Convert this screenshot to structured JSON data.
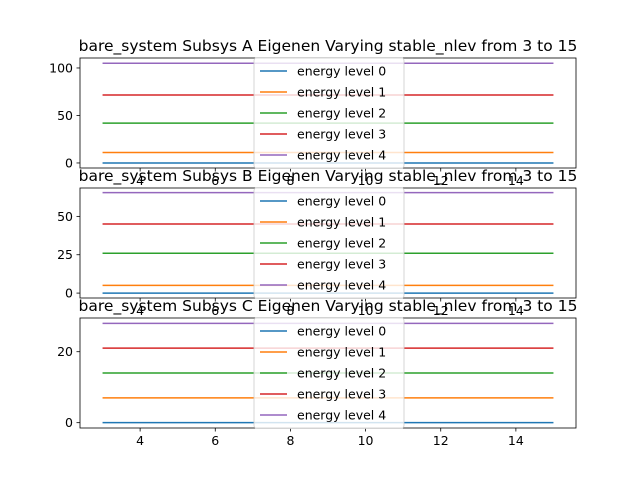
{
  "chart_data": [
    {
      "type": "line",
      "title": "bare_system Subsys A Eigenen Varying stable_nlev from 3 to 15",
      "xlabel": "",
      "ylabel": "",
      "xlim": [
        2.4,
        15.6
      ],
      "ylim": [
        -5.3,
        110.5
      ],
      "xticks": [
        4,
        6,
        8,
        10,
        12,
        14
      ],
      "yticks": [
        0,
        50,
        100
      ],
      "legend_position": "center",
      "x": [
        3,
        15
      ],
      "series": [
        {
          "name": "energy level 0",
          "color": "#1f77b4",
          "values": [
            0.0,
            0.0
          ]
        },
        {
          "name": "energy level 1",
          "color": "#ff7f0e",
          "values": [
            11.0,
            11.0
          ]
        },
        {
          "name": "energy level 2",
          "color": "#2ca02c",
          "values": [
            42.0,
            42.0
          ]
        },
        {
          "name": "energy level 3",
          "color": "#d62728",
          "values": [
            71.5,
            71.5
          ]
        },
        {
          "name": "energy level 4",
          "color": "#9467bd",
          "values": [
            105.0,
            105.0
          ]
        }
      ]
    },
    {
      "type": "line",
      "title": "bare_system Subsys B Eigenen Varying stable_nlev from 3 to 15",
      "xlabel": "",
      "ylabel": "",
      "xlim": [
        2.4,
        15.6
      ],
      "ylim": [
        -3.2,
        68.5
      ],
      "xticks": [
        4,
        6,
        8,
        10,
        12,
        14
      ],
      "yticks": [
        0,
        25,
        50
      ],
      "legend_position": "center",
      "x": [
        3,
        15
      ],
      "series": [
        {
          "name": "energy level 0",
          "color": "#1f77b4",
          "values": [
            0.0,
            0.0
          ]
        },
        {
          "name": "energy level 1",
          "color": "#ff7f0e",
          "values": [
            5.0,
            5.0
          ]
        },
        {
          "name": "energy level 2",
          "color": "#2ca02c",
          "values": [
            26.0,
            26.0
          ]
        },
        {
          "name": "energy level 3",
          "color": "#d62728",
          "values": [
            45.0,
            45.0
          ]
        },
        {
          "name": "energy level 4",
          "color": "#9467bd",
          "values": [
            65.5,
            65.5
          ]
        }
      ]
    },
    {
      "type": "line",
      "title": "bare_system Subsys C Eigenen Varying stable_nlev from 3 to 15",
      "xlabel": "",
      "ylabel": "",
      "xlim": [
        2.4,
        15.6
      ],
      "ylim": [
        -1.5,
        29.5
      ],
      "xticks": [
        4,
        6,
        8,
        10,
        12,
        14
      ],
      "yticks": [
        0,
        20
      ],
      "legend_position": "center",
      "x": [
        3,
        15
      ],
      "series": [
        {
          "name": "energy level 0",
          "color": "#1f77b4",
          "values": [
            0.0,
            0.0
          ]
        },
        {
          "name": "energy level 1",
          "color": "#ff7f0e",
          "values": [
            7.0,
            7.0
          ]
        },
        {
          "name": "energy level 2",
          "color": "#2ca02c",
          "values": [
            14.0,
            14.0
          ]
        },
        {
          "name": "energy level 3",
          "color": "#d62728",
          "values": [
            21.0,
            21.0
          ]
        },
        {
          "name": "energy level 4",
          "color": "#9467bd",
          "values": [
            28.0,
            28.0
          ]
        }
      ]
    }
  ]
}
